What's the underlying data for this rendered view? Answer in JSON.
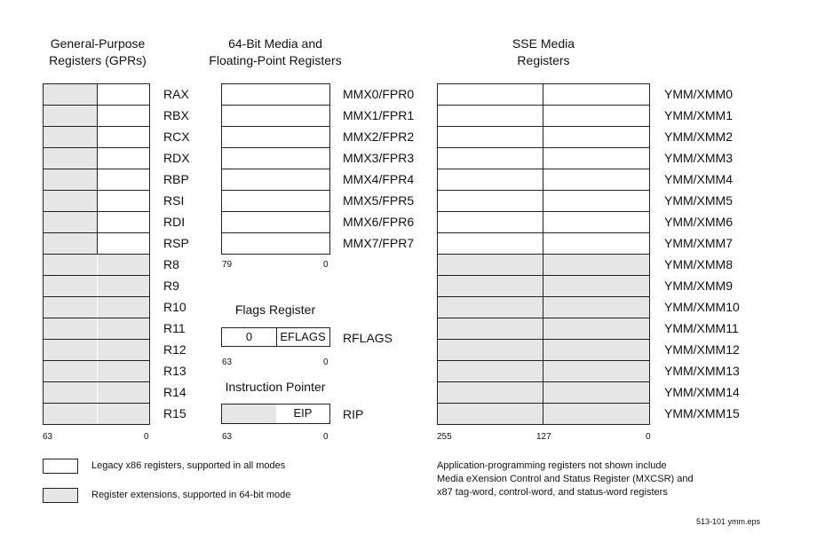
{
  "gpr": {
    "title": [
      "General-Purpose",
      "Registers (GPRs)"
    ],
    "names": [
      "RAX",
      "RBX",
      "RCX",
      "RDX",
      "RBP",
      "RSI",
      "RDI",
      "RSP",
      "R8",
      "R9",
      "R10",
      "R11",
      "R12",
      "R13",
      "R14",
      "R15"
    ],
    "legacy_count": 8,
    "bit_high": "63",
    "bit_low": "0"
  },
  "mmx": {
    "title": [
      "64-Bit Media and",
      "Floating-Point Registers"
    ],
    "names": [
      "MMX0/FPR0",
      "MMX1/FPR1",
      "MMX2/FPR2",
      "MMX3/FPR3",
      "MMX4/FPR4",
      "MMX5/FPR5",
      "MMX6/FPR6",
      "MMX7/FPR7"
    ],
    "bit_high": "79",
    "bit_low": "0"
  },
  "flags": {
    "title": "Flags Register",
    "zero": "0",
    "field": "EFLAGS",
    "name": "RFLAGS",
    "bit_high": "63",
    "bit_low": "0"
  },
  "ip": {
    "title": "Instruction Pointer",
    "field": "EIP",
    "name": "RIP",
    "bit_high": "63",
    "bit_low": "0"
  },
  "sse": {
    "title": [
      "SSE Media",
      "Registers"
    ],
    "names": [
      "YMM/XMM0",
      "YMM/XMM1",
      "YMM/XMM2",
      "YMM/XMM3",
      "YMM/XMM4",
      "YMM/XMM5",
      "YMM/XMM6",
      "YMM/XMM7",
      "YMM/XMM8",
      "YMM/XMM9",
      "YMM/XMM10",
      "YMM/XMM11",
      "YMM/XMM12",
      "YMM/XMM13",
      "YMM/XMM14",
      "YMM/XMM15"
    ],
    "legacy_count": 8,
    "bit_high": "255",
    "bit_mid": "127",
    "bit_low": "0"
  },
  "legend": {
    "legacy": "Legacy x86 registers, supported in all modes",
    "extension": "Register extensions, supported in 64-bit mode"
  },
  "note": [
    "Application-programming registers not shown include",
    "Media eXension Control and Status Register (MXCSR) and",
    "x87 tag-word, control-word, and status-word registers"
  ],
  "figure_id": "513-101 ymm.eps",
  "colors": {
    "extension_fill": "#e6e6e6",
    "legacy_fill": "#ffffff",
    "border": "#222222"
  }
}
